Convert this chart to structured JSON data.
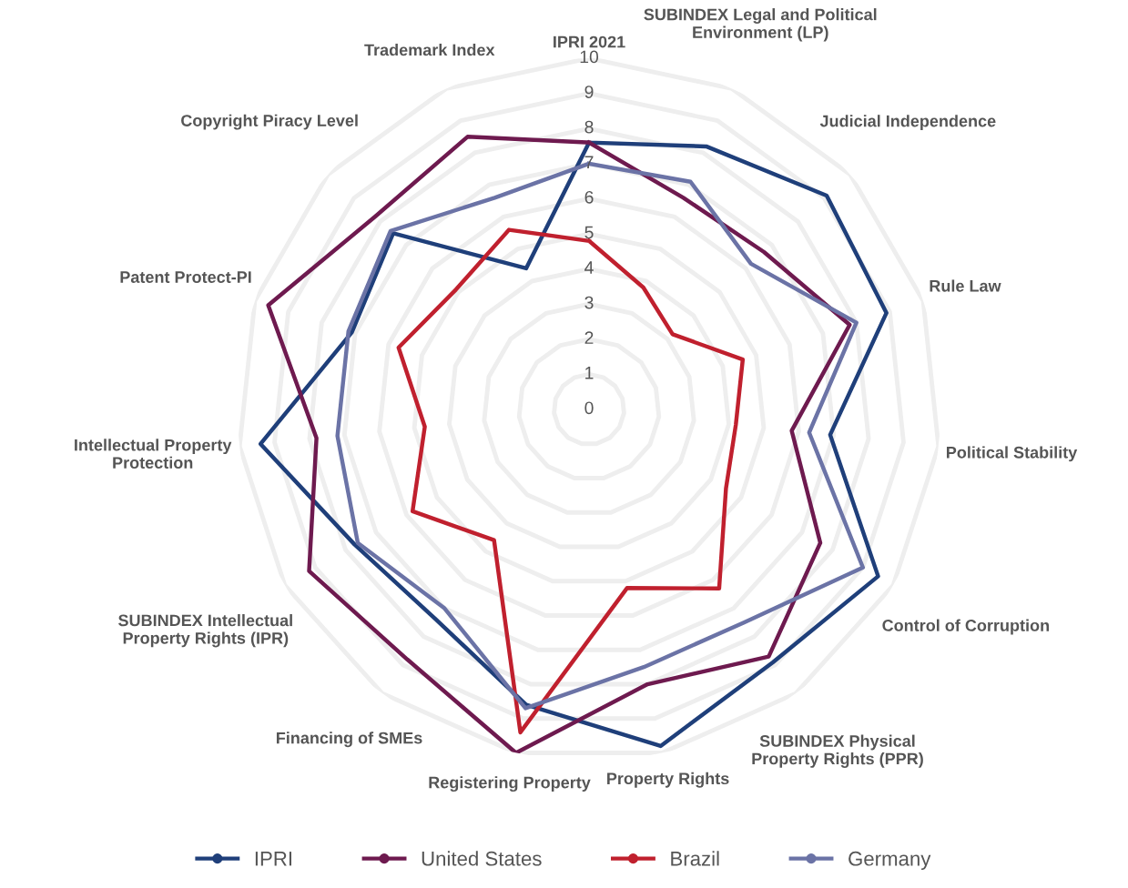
{
  "chart_data": {
    "type": "radar",
    "categories": [
      "IPRI 2021",
      "SUBINDEX Legal and Political\nEnvironment (LP)",
      "Judicial Independence",
      "Rule Law",
      "Political Stability",
      "Control of Corruption",
      "SUBINDEX Physical\nProperty Rights (PPR)",
      "Property Rights",
      "Registering Property",
      "Financing of SMEs",
      "SUBINDEX Intellectual\nProperty Rights (IPR)",
      "Intellectual Property\nProtection",
      "Patent Protect-PI",
      "Copyright Piracy Level",
      "Trademark Index"
    ],
    "series": [
      {
        "name": "IPRI",
        "color": "#1f3f7a",
        "values": [
          7.6,
          8.2,
          9.1,
          8.9,
          6.9,
          9.5,
          8.9,
          9.8,
          8.6,
          7.4,
          7.7,
          9.4,
          7.1,
          7.5,
          4.4
        ]
      },
      {
        "name": "United States",
        "color": "#6e1a4f",
        "values": [
          7.6,
          6.6,
          6.7,
          7.8,
          5.8,
          7.6,
          8.7,
          8.0,
          10.0,
          8.8,
          9.2,
          7.8,
          9.6,
          8.2,
          8.5
        ]
      },
      {
        "name": "Brazil",
        "color": "#c0202e",
        "values": [
          4.8,
          3.8,
          3.2,
          4.6,
          4.2,
          4.5,
          6.3,
          5.2,
          9.4,
          4.6,
          5.8,
          4.7,
          5.7,
          5.1,
          5.6
        ]
      },
      {
        "name": "Germany",
        "color": "#6b73a6",
        "values": [
          7.0,
          7.1,
          6.2,
          8.0,
          6.3,
          9.0,
          7.5,
          7.5,
          8.7,
          7.0,
          7.6,
          7.2,
          7.2,
          7.6,
          6.6
        ]
      }
    ],
    "ylim": [
      0,
      10
    ],
    "yticks": [
      0,
      1,
      2,
      3,
      4,
      5,
      6,
      7,
      8,
      9,
      10
    ],
    "grid": true,
    "legend": "bottom"
  }
}
